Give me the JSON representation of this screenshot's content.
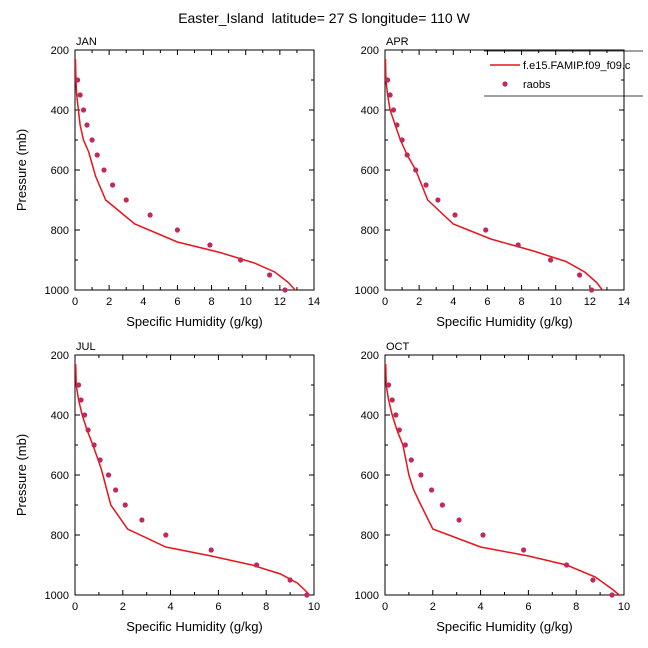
{
  "title": "Easter_Island  latitude= 27 S longitude= 110 W",
  "legend": {
    "model_label": "f.e15.FAMIP.f09_f09.c",
    "obs_label": "raobs"
  },
  "colors": {
    "model_line": "#e8141b",
    "obs_marker": "#c2285a",
    "axis": "#000000"
  },
  "chart_data": [
    {
      "type": "line",
      "panel_label": "JAN",
      "xlabel": "Specific Humidity (g/kg)",
      "ylabel": "Pressure (mb)",
      "xlim": [
        0,
        14
      ],
      "ylim": [
        200,
        1000
      ],
      "y_inverted": true,
      "xticks": [
        0,
        2,
        4,
        6,
        8,
        10,
        12,
        14
      ],
      "yticks": [
        200,
        400,
        600,
        800,
        1000
      ],
      "series": [
        {
          "name": "f.e15.FAMIP.f09_f09.c",
          "kind": "line",
          "x": [
            0.03,
            0.05,
            0.1,
            0.2,
            0.3,
            0.5,
            0.8,
            1.2,
            1.8,
            3.5,
            6.0,
            8.5,
            10.5,
            11.7,
            12.5,
            13.1
          ],
          "y": [
            230,
            300,
            350,
            400,
            450,
            500,
            540,
            620,
            700,
            780,
            840,
            875,
            910,
            940,
            975,
            1013
          ]
        },
        {
          "name": "raobs",
          "kind": "scatter",
          "x": [
            0.15,
            0.3,
            0.5,
            0.7,
            1.0,
            1.3,
            1.7,
            2.2,
            3.0,
            4.4,
            6.0,
            7.9,
            9.7,
            11.4,
            12.3
          ],
          "y": [
            300,
            350,
            400,
            450,
            500,
            550,
            600,
            650,
            700,
            750,
            800,
            850,
            900,
            950,
            1000
          ]
        }
      ]
    },
    {
      "type": "line",
      "panel_label": "APR",
      "xlabel": "Specific Humidity (g/kg)",
      "ylabel": "",
      "xlim": [
        0,
        14
      ],
      "ylim": [
        200,
        1000
      ],
      "y_inverted": true,
      "xticks": [
        0,
        2,
        4,
        6,
        8,
        10,
        12,
        14
      ],
      "yticks": [
        200,
        400,
        600,
        800,
        1000
      ],
      "series": [
        {
          "name": "f.e15.FAMIP.f09_f09.c",
          "kind": "line",
          "x": [
            0.03,
            0.05,
            0.15,
            0.3,
            0.6,
            0.9,
            1.3,
            1.8,
            2.5,
            4.0,
            6.2,
            8.7,
            10.6,
            11.7,
            12.4,
            12.9
          ],
          "y": [
            230,
            300,
            350,
            400,
            450,
            500,
            550,
            600,
            700,
            780,
            830,
            870,
            905,
            940,
            975,
            1013
          ]
        },
        {
          "name": "raobs",
          "kind": "scatter",
          "x": [
            0.15,
            0.3,
            0.5,
            0.7,
            1.0,
            1.3,
            1.8,
            2.4,
            3.1,
            4.1,
            5.9,
            7.8,
            9.7,
            11.4,
            12.1
          ],
          "y": [
            300,
            350,
            400,
            450,
            500,
            550,
            600,
            650,
            700,
            750,
            800,
            850,
            900,
            950,
            1000
          ]
        }
      ]
    },
    {
      "type": "line",
      "panel_label": "JUL",
      "xlabel": "Specific Humidity (g/kg)",
      "ylabel": "Pressure (mb)",
      "xlim": [
        0,
        10
      ],
      "ylim": [
        200,
        1000
      ],
      "y_inverted": true,
      "xticks": [
        0,
        2,
        4,
        6,
        8,
        10
      ],
      "yticks": [
        200,
        400,
        600,
        800,
        1000
      ],
      "series": [
        {
          "name": "f.e15.FAMIP.f09_f09.c",
          "kind": "line",
          "x": [
            0.03,
            0.05,
            0.15,
            0.3,
            0.5,
            0.75,
            1.1,
            1.5,
            2.2,
            3.8,
            5.7,
            7.4,
            8.6,
            9.3,
            9.7,
            9.95
          ],
          "y": [
            230,
            300,
            350,
            400,
            450,
            500,
            580,
            700,
            780,
            840,
            870,
            900,
            930,
            960,
            990,
            1013
          ]
        },
        {
          "name": "raobs",
          "kind": "scatter",
          "x": [
            0.15,
            0.25,
            0.4,
            0.55,
            0.8,
            1.05,
            1.4,
            1.7,
            2.1,
            2.8,
            3.8,
            5.7,
            7.6,
            9.0,
            9.7
          ],
          "y": [
            300,
            350,
            400,
            450,
            500,
            550,
            600,
            650,
            700,
            750,
            800,
            850,
            900,
            950,
            1000
          ]
        }
      ]
    },
    {
      "type": "line",
      "panel_label": "OCT",
      "xlabel": "Specific Humidity (g/kg)",
      "ylabel": "",
      "xlim": [
        0,
        10
      ],
      "ylim": [
        200,
        1000
      ],
      "y_inverted": true,
      "xticks": [
        0,
        2,
        4,
        6,
        8,
        10
      ],
      "yticks": [
        200,
        400,
        600,
        800,
        1000
      ],
      "series": [
        {
          "name": "f.e15.FAMIP.f09_f09.c",
          "kind": "line",
          "x": [
            0.03,
            0.05,
            0.15,
            0.3,
            0.5,
            0.75,
            1.0,
            1.2,
            1.5,
            2.0,
            4.0,
            6.0,
            7.6,
            8.8,
            9.5,
            10.0
          ],
          "y": [
            230,
            300,
            350,
            400,
            450,
            500,
            600,
            650,
            700,
            780,
            840,
            870,
            900,
            940,
            980,
            1013
          ]
        },
        {
          "name": "raobs",
          "kind": "scatter",
          "x": [
            0.15,
            0.3,
            0.45,
            0.6,
            0.85,
            1.1,
            1.5,
            1.95,
            2.4,
            3.1,
            4.1,
            5.8,
            7.6,
            8.7,
            9.5
          ],
          "y": [
            300,
            350,
            400,
            450,
            500,
            550,
            600,
            650,
            700,
            750,
            800,
            850,
            900,
            950,
            1000
          ]
        }
      ]
    }
  ]
}
